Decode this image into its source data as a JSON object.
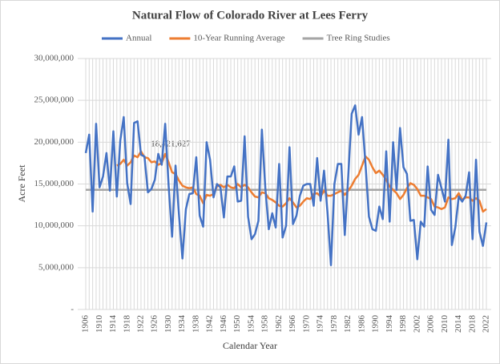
{
  "chart_data": {
    "type": "line",
    "title": "Natural Flow  of Colorado  River at Lees Ferry",
    "x_label": "Calendar Year",
    "y_label": "Acre Feet",
    "annotation": "18,421,627",
    "legend": "top",
    "grid": true,
    "categories": [
      "1906",
      null,
      null,
      null,
      "1910",
      null,
      null,
      null,
      "1914",
      null,
      null,
      null,
      "1918",
      null,
      null,
      null,
      "1922",
      null,
      null,
      null,
      "1926",
      null,
      null,
      null,
      "1930",
      null,
      null,
      null,
      "1934",
      null,
      null,
      null,
      "1938",
      null,
      null,
      null,
      "1942",
      null,
      null,
      null,
      "1946",
      null,
      null,
      null,
      "1950",
      null,
      null,
      null,
      "1954",
      null,
      null,
      null,
      "1958",
      null,
      null,
      null,
      "1962",
      null,
      null,
      null,
      "1966",
      null,
      null,
      null,
      "1970",
      null,
      null,
      null,
      "1974",
      null,
      null,
      null,
      "1978",
      null,
      null,
      null,
      "1982",
      null,
      null,
      null,
      "1986",
      null,
      null,
      null,
      "1990",
      null,
      null,
      null,
      "1994",
      null,
      null,
      null,
      "1998",
      null,
      null,
      null,
      "2002",
      null,
      null,
      null,
      "2006",
      null,
      null,
      null,
      "2010",
      null,
      null,
      null,
      "2014",
      null,
      null,
      null,
      "2018",
      null,
      null,
      null,
      "2022"
    ],
    "ylim": [
      0,
      30000000
    ],
    "yticks": [
      {
        "value": 0,
        "label": "-"
      },
      {
        "value": 5000000,
        "label": "5,000,000"
      },
      {
        "value": 10000000,
        "label": "10,000,000"
      },
      {
        "value": 15000000,
        "label": "15,000,000"
      },
      {
        "value": 20000000,
        "label": "20,000,000"
      },
      {
        "value": 25000000,
        "label": "25,000,000"
      },
      {
        "value": 30000000,
        "label": "30,000,000"
      }
    ],
    "series": [
      {
        "name": "Annual",
        "color": "#4472c4",
        "values": [
          18700000,
          20900000,
          11700000,
          22200000,
          14600000,
          15900000,
          18700000,
          14200000,
          21300000,
          13500000,
          20200000,
          23000000,
          15100000,
          12600000,
          22300000,
          22500000,
          18500000,
          18300000,
          14000000,
          14400000,
          15500000,
          18600000,
          17300000,
          22200000,
          14800000,
          8700000,
          17200000,
          11300000,
          6100000,
          12000000,
          13800000,
          13900000,
          18200000,
          11200000,
          9900000,
          20000000,
          17900000,
          13400000,
          15000000,
          14600000,
          11000000,
          15900000,
          15900000,
          17100000,
          12900000,
          13000000,
          20700000,
          11100000,
          8400000,
          9000000,
          10600000,
          21500000,
          14500000,
          9600000,
          11500000,
          9800000,
          17400000,
          8600000,
          10000000,
          19400000,
          10200000,
          11200000,
          13600000,
          14800000,
          15000000,
          15000000,
          12400000,
          18100000,
          13000000,
          16600000,
          11600000,
          5300000,
          15000000,
          17400000,
          17400000,
          8900000,
          15900000,
          23400000,
          24400000,
          20900000,
          23000000,
          17400000,
          11100000,
          9600000,
          9400000,
          12300000,
          10800000,
          18900000,
          10500000,
          20000000,
          14300000,
          21700000,
          17000000,
          16200000,
          10600000,
          10700000,
          6000000,
          10500000,
          9900000,
          17100000,
          11900000,
          11300000,
          16100000,
          14500000,
          12900000,
          20300000,
          7700000,
          9800000,
          13500000,
          12900000,
          13600000,
          16400000,
          8400000,
          17900000,
          9300000,
          7600000,
          10400000
        ]
      },
      {
        "name": "10-Year Running Average",
        "color": "#ed7d31",
        "values": [
          null,
          null,
          null,
          null,
          null,
          null,
          null,
          null,
          null,
          17200000,
          17400000,
          17900000,
          17200000,
          17600000,
          18400000,
          18200000,
          18900000,
          18200000,
          18100000,
          17600000,
          17700000,
          17300000,
          17500000,
          18600000,
          17600000,
          16400000,
          16200000,
          15400000,
          14800000,
          14600000,
          14500000,
          14600000,
          13800000,
          13600000,
          12700000,
          13700000,
          13600000,
          13800000,
          14700000,
          14900000,
          14600000,
          14900000,
          14600000,
          14500000,
          15000000,
          14600000,
          14900000,
          14600000,
          14000000,
          13500000,
          13400000,
          14000000,
          13900000,
          13300000,
          13100000,
          12800000,
          12400000,
          12300000,
          12700000,
          13300000,
          12800000,
          12200000,
          12400000,
          12900000,
          13300000,
          13200000,
          13800000,
          13900000,
          13500000,
          14200000,
          13600000,
          13600000,
          13800000,
          14000000,
          14200000,
          13700000,
          14200000,
          14800000,
          15600000,
          16100000,
          17200000,
          18300000,
          17900000,
          17000000,
          16300000,
          16600000,
          16100000,
          15500000,
          14700000,
          14300000,
          13900000,
          13200000,
          13700000,
          14500000,
          15100000,
          14900000,
          14400000,
          13600000,
          13600000,
          13400000,
          13200000,
          12300000,
          12200000,
          12000000,
          12200000,
          13400000,
          13200000,
          13300000,
          13900000,
          13100000,
          13400000,
          13400000,
          13000000,
          13300000,
          13000000,
          11700000,
          12000000
        ]
      },
      {
        "name": "Tree Ring Studies",
        "color": "#a5a5a5",
        "values": [
          14300000,
          14300000,
          14300000,
          14300000,
          14300000,
          14300000,
          14300000,
          14300000,
          14300000,
          14300000,
          14300000,
          14300000,
          14300000,
          14300000,
          14300000,
          14300000,
          14300000,
          14300000,
          14300000,
          14300000,
          14300000,
          14300000,
          14300000,
          14300000,
          14300000,
          14300000,
          14300000,
          14300000,
          14300000,
          14300000,
          14300000,
          14300000,
          14300000,
          14300000,
          14300000,
          14300000,
          14300000,
          14300000,
          14300000,
          14300000,
          14300000,
          14300000,
          14300000,
          14300000,
          14300000,
          14300000,
          14300000,
          14300000,
          14300000,
          14300000,
          14300000,
          14300000,
          14300000,
          14300000,
          14300000,
          14300000,
          14300000,
          14300000,
          14300000,
          14300000,
          14300000,
          14300000,
          14300000,
          14300000,
          14300000,
          14300000,
          14300000,
          14300000,
          14300000,
          14300000,
          14300000,
          14300000,
          14300000,
          14300000,
          14300000,
          14300000,
          14300000,
          14300000,
          14300000,
          14300000,
          14300000,
          14300000,
          14300000,
          14300000,
          14300000,
          14300000,
          14300000,
          14300000,
          14300000,
          14300000,
          14300000,
          14300000,
          14300000,
          14300000,
          14300000,
          14300000,
          14300000,
          14300000,
          14300000,
          14300000,
          14300000,
          14300000,
          14300000,
          14300000,
          14300000,
          14300000,
          14300000,
          14300000,
          14300000,
          14300000,
          14300000,
          14300000,
          14300000,
          14300000,
          14300000,
          14300000,
          14300000
        ]
      }
    ]
  }
}
